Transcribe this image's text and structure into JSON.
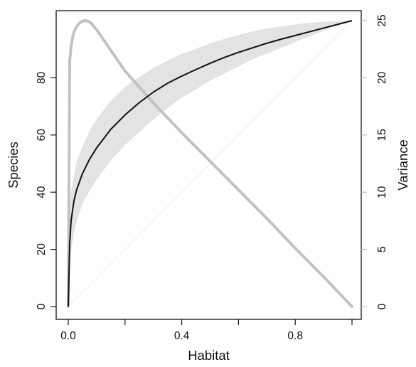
{
  "chart_data": {
    "type": "line",
    "title": "",
    "xlabel": "Habitat",
    "ylabel": "Species",
    "y2label": "Variance",
    "xlim": [
      0,
      1
    ],
    "ylim": [
      0,
      100
    ],
    "y2lim": [
      0,
      25
    ],
    "x_ticks": [
      0.0,
      0.2,
      0.4,
      0.6,
      0.8,
      1.0
    ],
    "x_tick_labels": [
      "0.0",
      "",
      "0.4",
      "",
      "0.8",
      ""
    ],
    "y_ticks": [
      0,
      20,
      40,
      60,
      80
    ],
    "y_tick_labels": [
      "0",
      "20",
      "40",
      "60",
      "80"
    ],
    "y2_ticks": [
      0,
      5,
      10,
      15,
      20,
      25
    ],
    "y2_tick_labels": [
      "0",
      "5",
      "10",
      "15",
      "20",
      "25"
    ],
    "grid": false,
    "legend": "none",
    "colors": {
      "mean_curve": "#111111",
      "band": "#e3e3e3",
      "variance_curve": "#c2c2c2",
      "diagonal": "#eeeeee",
      "axis": "#111111",
      "right_axis": "#b8b8b8"
    },
    "series": [
      {
        "role": "mean",
        "axis": "left",
        "style": "solid-black",
        "x": [
          0,
          0.005,
          0.01,
          0.02,
          0.03,
          0.05,
          0.075,
          0.1,
          0.15,
          0.2,
          0.25,
          0.3,
          0.35,
          0.4,
          0.45,
          0.5,
          0.55,
          0.6,
          0.65,
          0.7,
          0.75,
          0.8,
          0.85,
          0.9,
          0.95,
          1.0
        ],
        "y": [
          0,
          22,
          30,
          37,
          41,
          46.5,
          51.5,
          55.5,
          62,
          67,
          71.3,
          75,
          78.1,
          80.6,
          82.9,
          85.1,
          87.1,
          88.9,
          90.5,
          92.1,
          93.5,
          94.8,
          96.1,
          97.4,
          98.7,
          100
        ]
      },
      {
        "role": "band-upper",
        "axis": "left",
        "style": "grey-fill",
        "x": [
          0,
          0.005,
          0.01,
          0.02,
          0.03,
          0.05,
          0.075,
          0.1,
          0.15,
          0.2,
          0.25,
          0.3,
          0.35,
          0.4,
          0.45,
          0.5,
          0.55,
          0.6,
          0.65,
          0.7,
          0.75,
          0.8,
          0.85,
          0.9,
          0.95,
          1.0
        ],
        "y": [
          0,
          33,
          40,
          46,
          51,
          56,
          61.5,
          65.5,
          72,
          76.8,
          80.2,
          83.5,
          86,
          88.3,
          90.2,
          92,
          93.6,
          95,
          96.2,
          97.2,
          98,
          98.7,
          99.2,
          99.6,
          99.9,
          100
        ]
      },
      {
        "role": "band-lower",
        "axis": "left",
        "style": "grey-fill",
        "x": [
          0,
          0.005,
          0.01,
          0.02,
          0.03,
          0.05,
          0.075,
          0.1,
          0.15,
          0.2,
          0.25,
          0.3,
          0.35,
          0.4,
          0.45,
          0.5,
          0.55,
          0.6,
          0.65,
          0.7,
          0.75,
          0.8,
          0.85,
          0.9,
          0.95,
          1.0
        ],
        "y": [
          0,
          12,
          19,
          26,
          30,
          36,
          40.5,
          44.5,
          51,
          56.5,
          61,
          65.5,
          69.5,
          73,
          76,
          79,
          81.5,
          84,
          86.5,
          88.5,
          90.5,
          92.5,
          94.5,
          96.5,
          98.3,
          100
        ]
      },
      {
        "role": "variance",
        "axis": "right",
        "style": "thick-grey",
        "x": [
          0,
          0.005,
          0.01,
          0.015,
          0.02,
          0.03,
          0.04,
          0.05,
          0.06,
          0.07,
          0.08,
          0.1,
          0.15,
          0.2,
          0.3,
          0.4,
          0.5,
          0.6,
          0.7,
          0.8,
          0.9,
          1.0
        ],
        "y": [
          0,
          21.5,
          22.7,
          23.5,
          24,
          24.5,
          24.8,
          24.95,
          25,
          24.95,
          24.8,
          24.2,
          22.4,
          20.6,
          17.8,
          15.2,
          12.7,
          10.2,
          7.7,
          5.1,
          2.6,
          0
        ]
      },
      {
        "role": "reference-diagonal",
        "axis": "left",
        "style": "faint-line",
        "x": [
          0,
          1
        ],
        "y": [
          0,
          100
        ]
      }
    ]
  }
}
